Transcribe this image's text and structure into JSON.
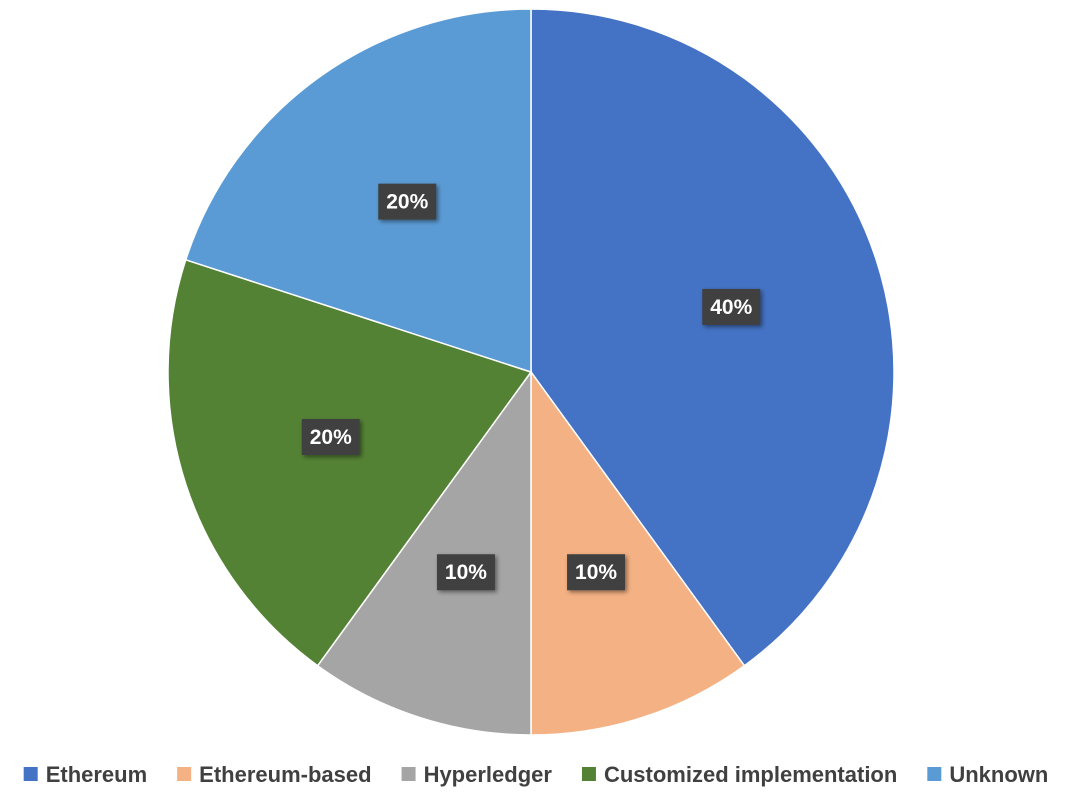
{
  "chart_data": {
    "type": "pie",
    "title": "",
    "start_angle_deg": 0,
    "direction": "clockwise",
    "legend_position": "bottom",
    "slices": [
      {
        "label": "Ethereum",
        "value": 40,
        "display": "40%",
        "color": "#4472C4"
      },
      {
        "label": "Ethereum-based",
        "value": 10,
        "display": "10%",
        "color": "#F4B183"
      },
      {
        "label": "Hyperledger",
        "value": 10,
        "display": "10%",
        "color": "#A5A5A5"
      },
      {
        "label": "Customized implementation",
        "value": 20,
        "display": "20%",
        "color": "#548235"
      },
      {
        "label": "Unknown",
        "value": 20,
        "display": "20%",
        "color": "#5B9BD5"
      }
    ]
  }
}
